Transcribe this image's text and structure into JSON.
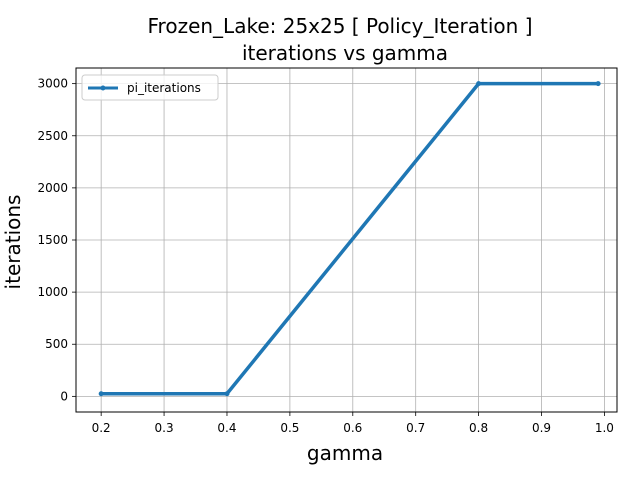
{
  "chart_data": {
    "type": "line",
    "title_lines": [
      "Frozen_Lake: 25x25 [ Policy_Iteration ]",
      "iterations vs gamma"
    ],
    "xlabel": "gamma",
    "ylabel": "iterations",
    "xlim": [
      0.16,
      1.02
    ],
    "ylim": [
      -150,
      3150
    ],
    "xticks": [
      0.2,
      0.3,
      0.4,
      0.5,
      0.6,
      0.7,
      0.8,
      0.9,
      1.0
    ],
    "xtick_labels": [
      "0.2",
      "0.3",
      "0.4",
      "0.5",
      "0.6",
      "0.7",
      "0.8",
      "0.9",
      "1.0"
    ],
    "yticks": [
      0,
      500,
      1000,
      1500,
      2000,
      2500,
      3000
    ],
    "ytick_labels": [
      "0",
      "500",
      "1000",
      "1500",
      "2000",
      "2500",
      "3000"
    ],
    "grid": true,
    "legend_position": "top-left",
    "series": [
      {
        "name": "pi_iterations",
        "color": "#1f77b4",
        "x": [
          0.2,
          0.4,
          0.8,
          0.99
        ],
        "y": [
          25,
          25,
          3000,
          3000
        ]
      }
    ]
  }
}
